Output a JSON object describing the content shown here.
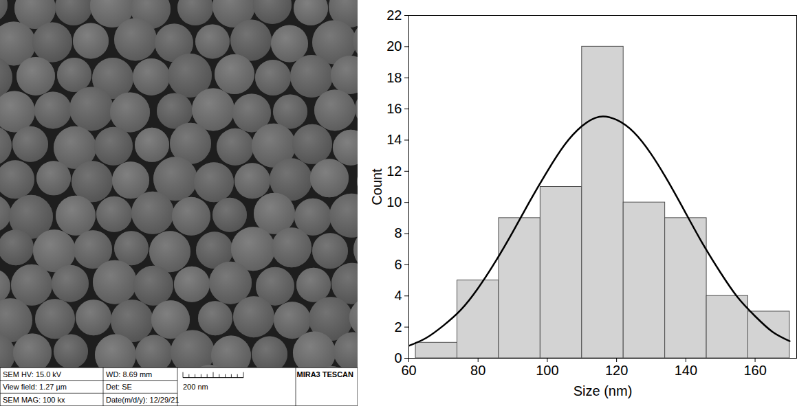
{
  "chart_data": {
    "type": "histogram",
    "x_label": "Size (nm)",
    "y_label": "Count",
    "bins": [
      62,
      74,
      86,
      98,
      110,
      122,
      134,
      146,
      158,
      170
    ],
    "values": [
      1,
      5,
      9,
      11,
      20,
      10,
      9,
      4,
      3
    ],
    "color": "#d3d3d3",
    "xlim": [
      60,
      172
    ],
    "xticks": [
      60,
      80,
      100,
      120,
      140,
      160
    ],
    "ylim": [
      0,
      22
    ],
    "yticks": [
      0,
      2,
      4,
      6,
      8,
      10,
      12,
      14,
      16,
      18,
      20,
      22
    ],
    "grid": false,
    "fit_curve": {
      "type": "line",
      "color": "#000000",
      "x": [
        60,
        65,
        70,
        75,
        80,
        85,
        90,
        95,
        100,
        105,
        110,
        115,
        120,
        125,
        130,
        135,
        140,
        145,
        150,
        155,
        160,
        165,
        170
      ],
      "values": [
        0.8,
        1.3,
        2.1,
        3.1,
        4.5,
        6.2,
        8.1,
        10.1,
        12.0,
        13.7,
        14.9,
        15.5,
        15.3,
        14.5,
        13.1,
        11.3,
        9.3,
        7.3,
        5.5,
        3.9,
        2.7,
        1.7,
        1.1
      ]
    }
  },
  "image_panel": {
    "type": "image",
    "info_bar": {
      "left_column": [
        "SEM HV: 15.0 kV",
        "View field: 1.27 µm",
        "SEM MAG: 100 kx"
      ],
      "middle_column": [
        "WD: 8.69 mm",
        "Det: SE",
        "Date(m/d/y): 12/29/21"
      ],
      "scale_bar_label": "200 nm",
      "brand": "MIRA3 TESCAN"
    }
  }
}
